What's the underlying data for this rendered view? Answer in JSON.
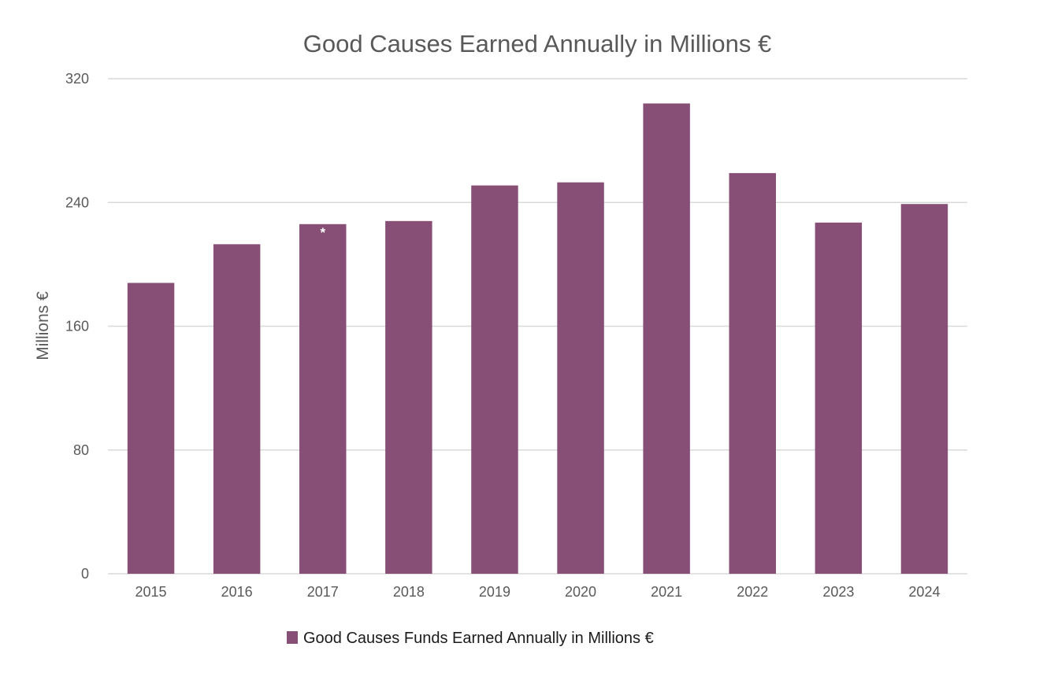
{
  "chart_data": {
    "type": "bar",
    "title": "Good Causes Earned Annually in Millions €",
    "xlabel": "",
    "ylabel": "Millions €",
    "categories": [
      "2015",
      "2016",
      "2017",
      "2018",
      "2019",
      "2020",
      "2021",
      "2022",
      "2023",
      "2024"
    ],
    "series": [
      {
        "name": "Good Causes Funds Earned Annually in Millions €",
        "color": "#874f75",
        "values": [
          188,
          213,
          226,
          228,
          251,
          253,
          304,
          259,
          227,
          239
        ]
      }
    ],
    "ylim": [
      0,
      320
    ],
    "yticks": [
      "0",
      "80",
      "160",
      "240",
      "320"
    ],
    "grid": true,
    "legend_position": "bottom",
    "annotations": [
      {
        "category": "2017",
        "text": "*"
      }
    ]
  }
}
